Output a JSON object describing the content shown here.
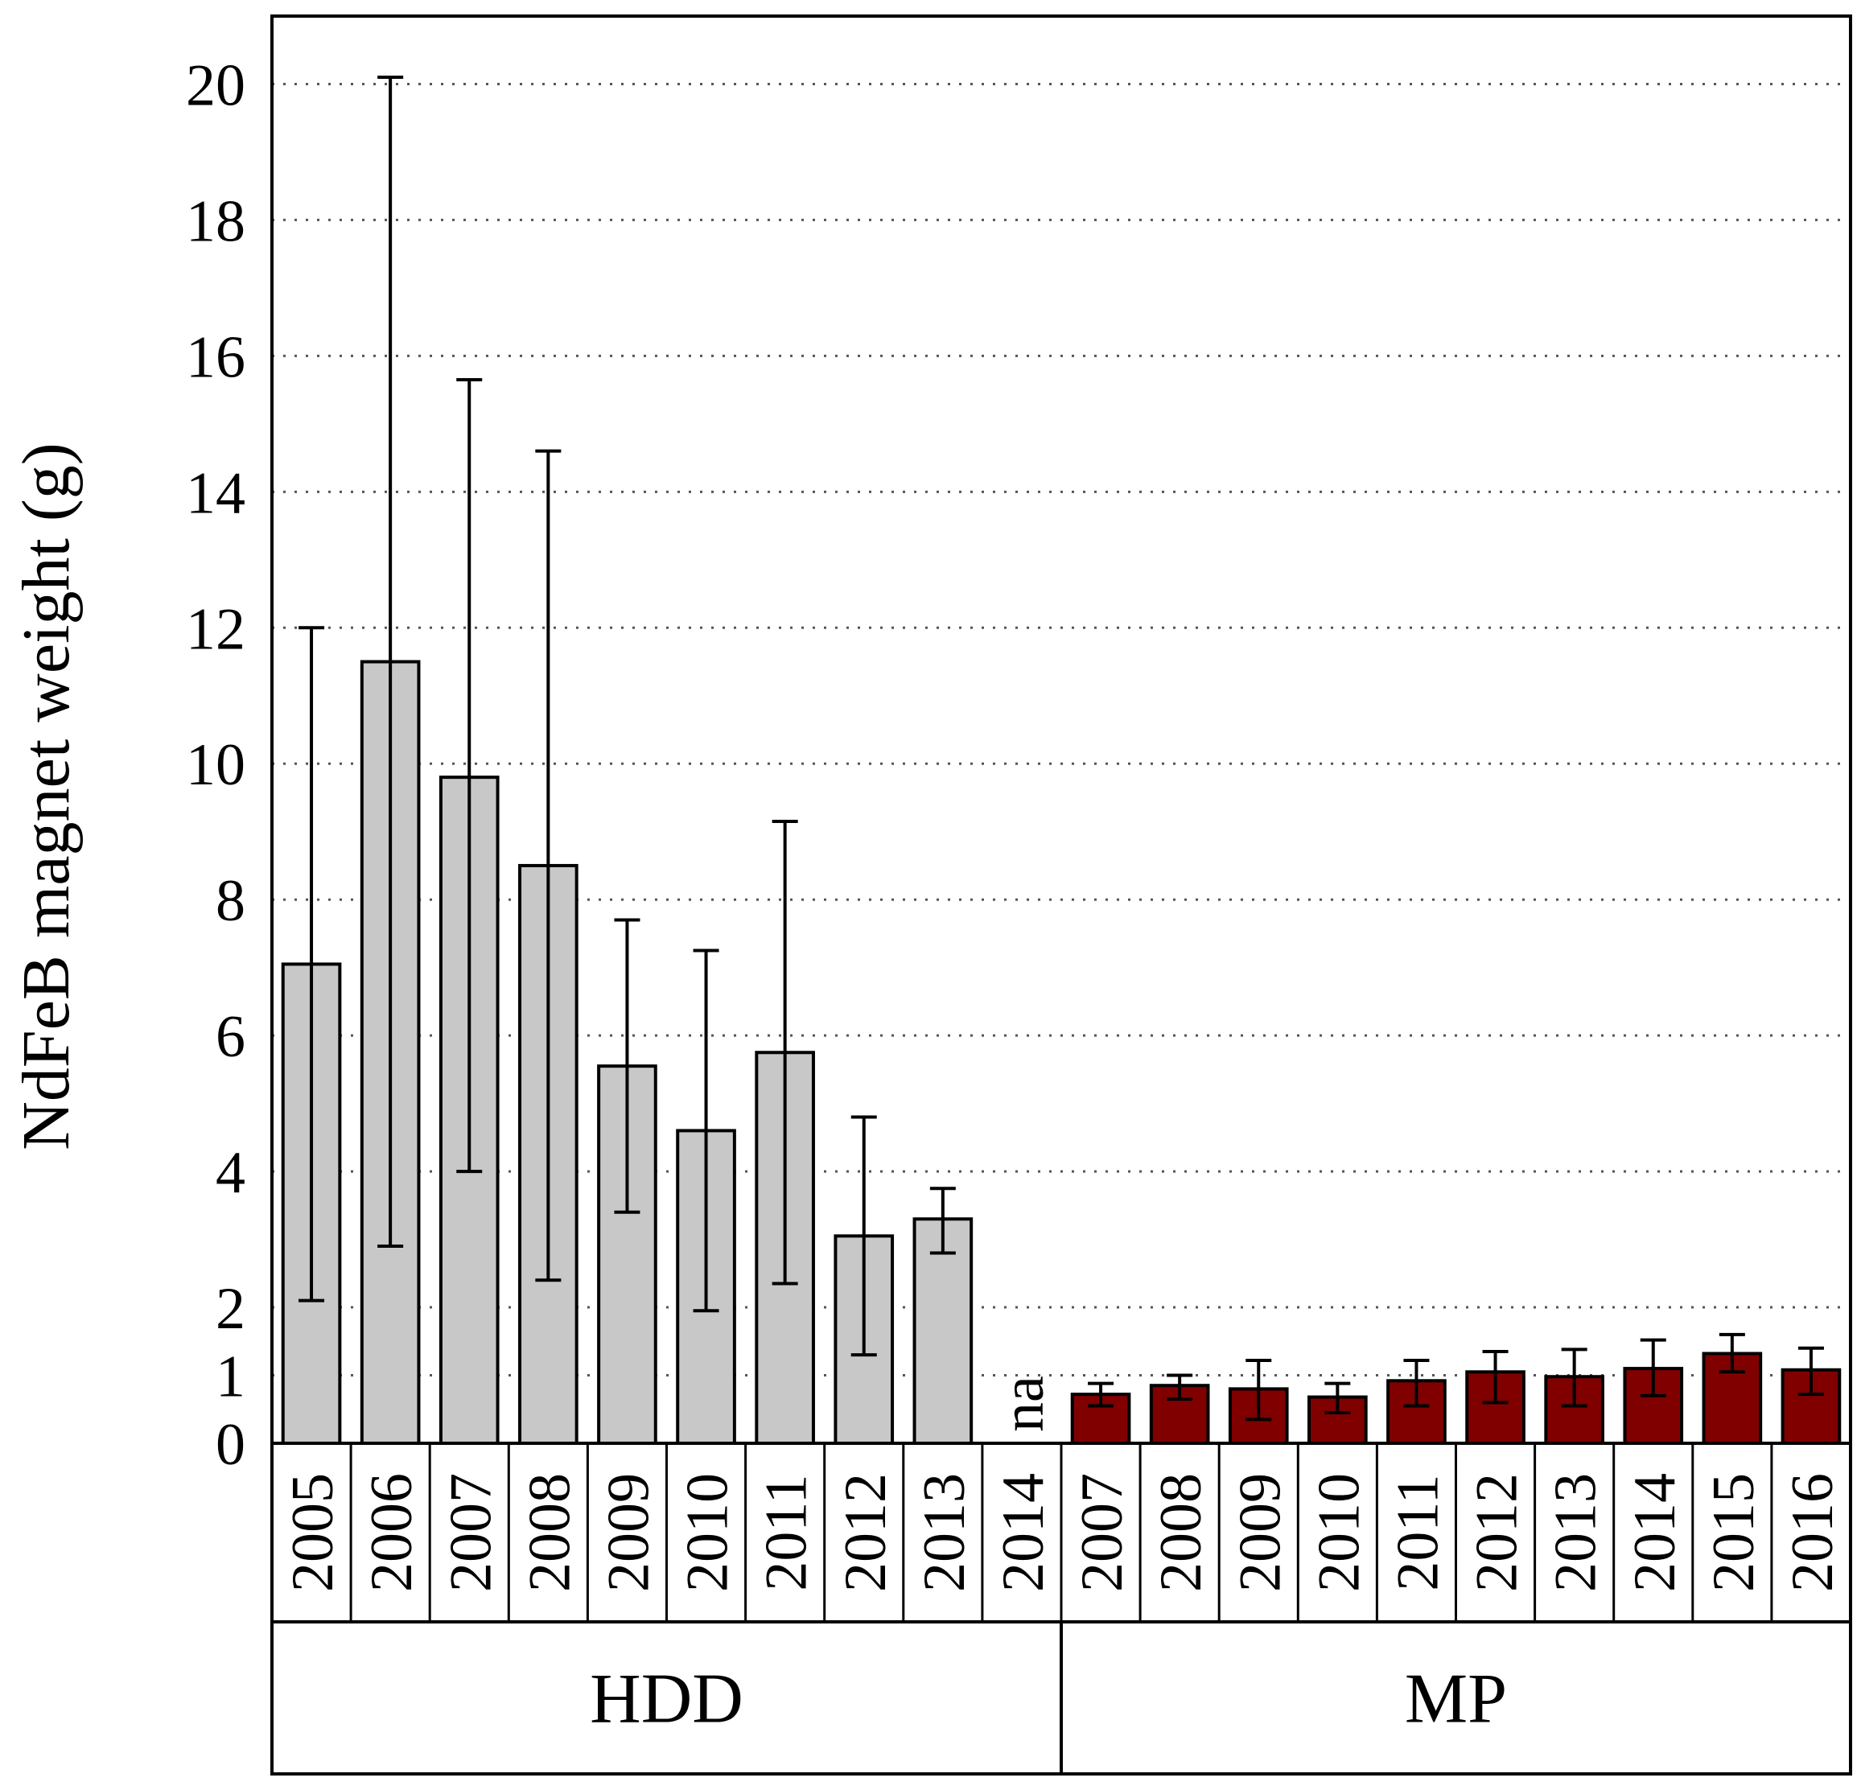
{
  "chart_data": {
    "type": "bar",
    "ylabel": "NdFeB magnet weight (g)",
    "ylim": [
      0,
      21
    ],
    "yticks": [
      0,
      1,
      2,
      4,
      6,
      8,
      10,
      12,
      14,
      16,
      18,
      20
    ],
    "grid": "horizontal dotted",
    "groups": [
      {
        "name": "HDD",
        "color": "#c8c8c8",
        "categories": [
          "2005",
          "2006",
          "2007",
          "2008",
          "2009",
          "2010",
          "2011",
          "2012",
          "2013",
          "2014"
        ],
        "values": [
          7.05,
          11.5,
          9.8,
          8.5,
          5.55,
          4.6,
          5.75,
          3.05,
          3.3,
          null
        ],
        "error_low": [
          2.1,
          2.9,
          4.0,
          2.4,
          3.4,
          1.95,
          2.35,
          1.3,
          2.8,
          null
        ],
        "error_high": [
          12.0,
          20.1,
          15.65,
          14.6,
          7.7,
          7.25,
          9.15,
          4.8,
          3.75,
          null
        ],
        "missing_label": "na"
      },
      {
        "name": "MP",
        "color": "#800000",
        "categories": [
          "2007",
          "2008",
          "2009",
          "2010",
          "2011",
          "2012",
          "2013",
          "2014",
          "2015",
          "2016"
        ],
        "values": [
          0.72,
          0.85,
          0.8,
          0.68,
          0.92,
          1.05,
          0.98,
          1.1,
          1.32,
          1.08
        ],
        "error_low": [
          0.55,
          0.65,
          0.35,
          0.45,
          0.55,
          0.6,
          0.55,
          0.7,
          1.05,
          0.72
        ],
        "error_high": [
          0.88,
          1.0,
          1.22,
          0.88,
          1.22,
          1.35,
          1.38,
          1.52,
          1.6,
          1.4
        ]
      }
    ]
  }
}
